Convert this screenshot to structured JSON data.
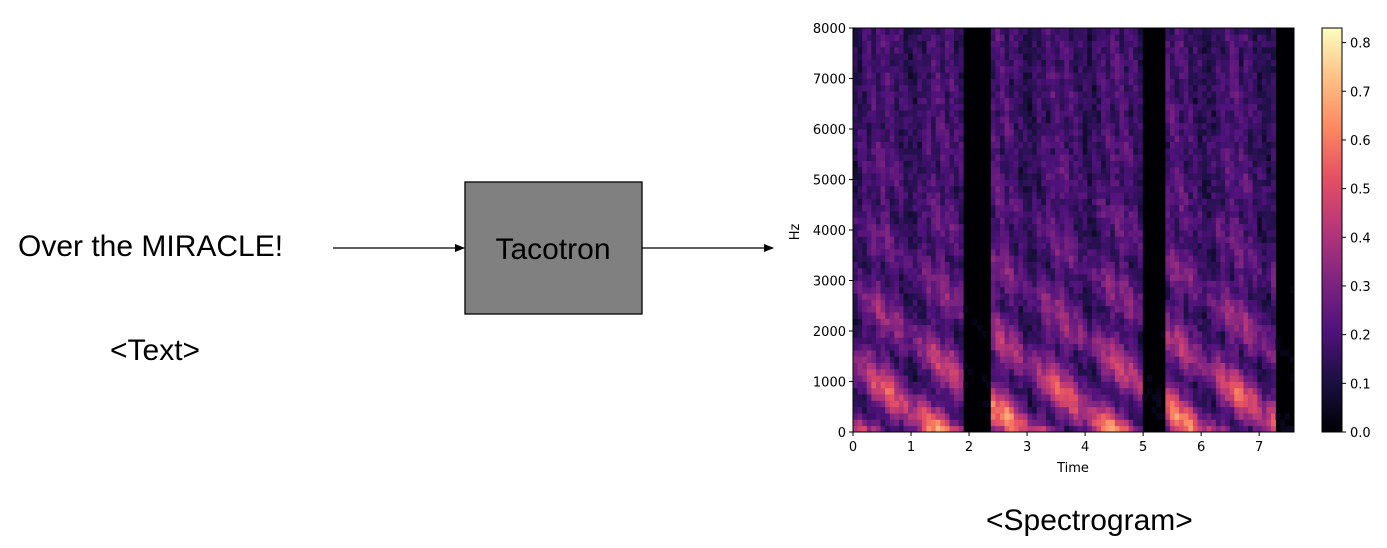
{
  "input": {
    "text": "Over the MIRACLE!",
    "caption": "<Text>"
  },
  "model": {
    "label": "Tacotron",
    "box_color": "#808080"
  },
  "output": {
    "caption": "<Spectrogram>"
  },
  "chart_data": {
    "type": "heatmap",
    "colormap": "magma",
    "xlabel": "Time",
    "ylabel": "Hz",
    "xlim": [
      0,
      7.6
    ],
    "ylim": [
      0,
      8000
    ],
    "x_ticks": [
      "0",
      "1",
      "2",
      "3",
      "4",
      "5",
      "6",
      "7"
    ],
    "y_ticks": [
      "0",
      "1000",
      "2000",
      "3000",
      "4000",
      "5000",
      "6000",
      "7000",
      "8000"
    ],
    "colorbar": {
      "range": [
        0,
        0.83
      ],
      "ticks": [
        "0.0",
        "0.1",
        "0.2",
        "0.3",
        "0.4",
        "0.5",
        "0.6",
        "0.7",
        "0.8"
      ]
    },
    "silence_gaps_time": [
      [
        1.9,
        2.4
      ],
      [
        4.95,
        5.4
      ],
      [
        7.3,
        7.6
      ]
    ],
    "voiced_segments_time": [
      [
        0.0,
        1.9
      ],
      [
        2.4,
        4.95
      ],
      [
        5.4,
        7.3
      ]
    ]
  }
}
